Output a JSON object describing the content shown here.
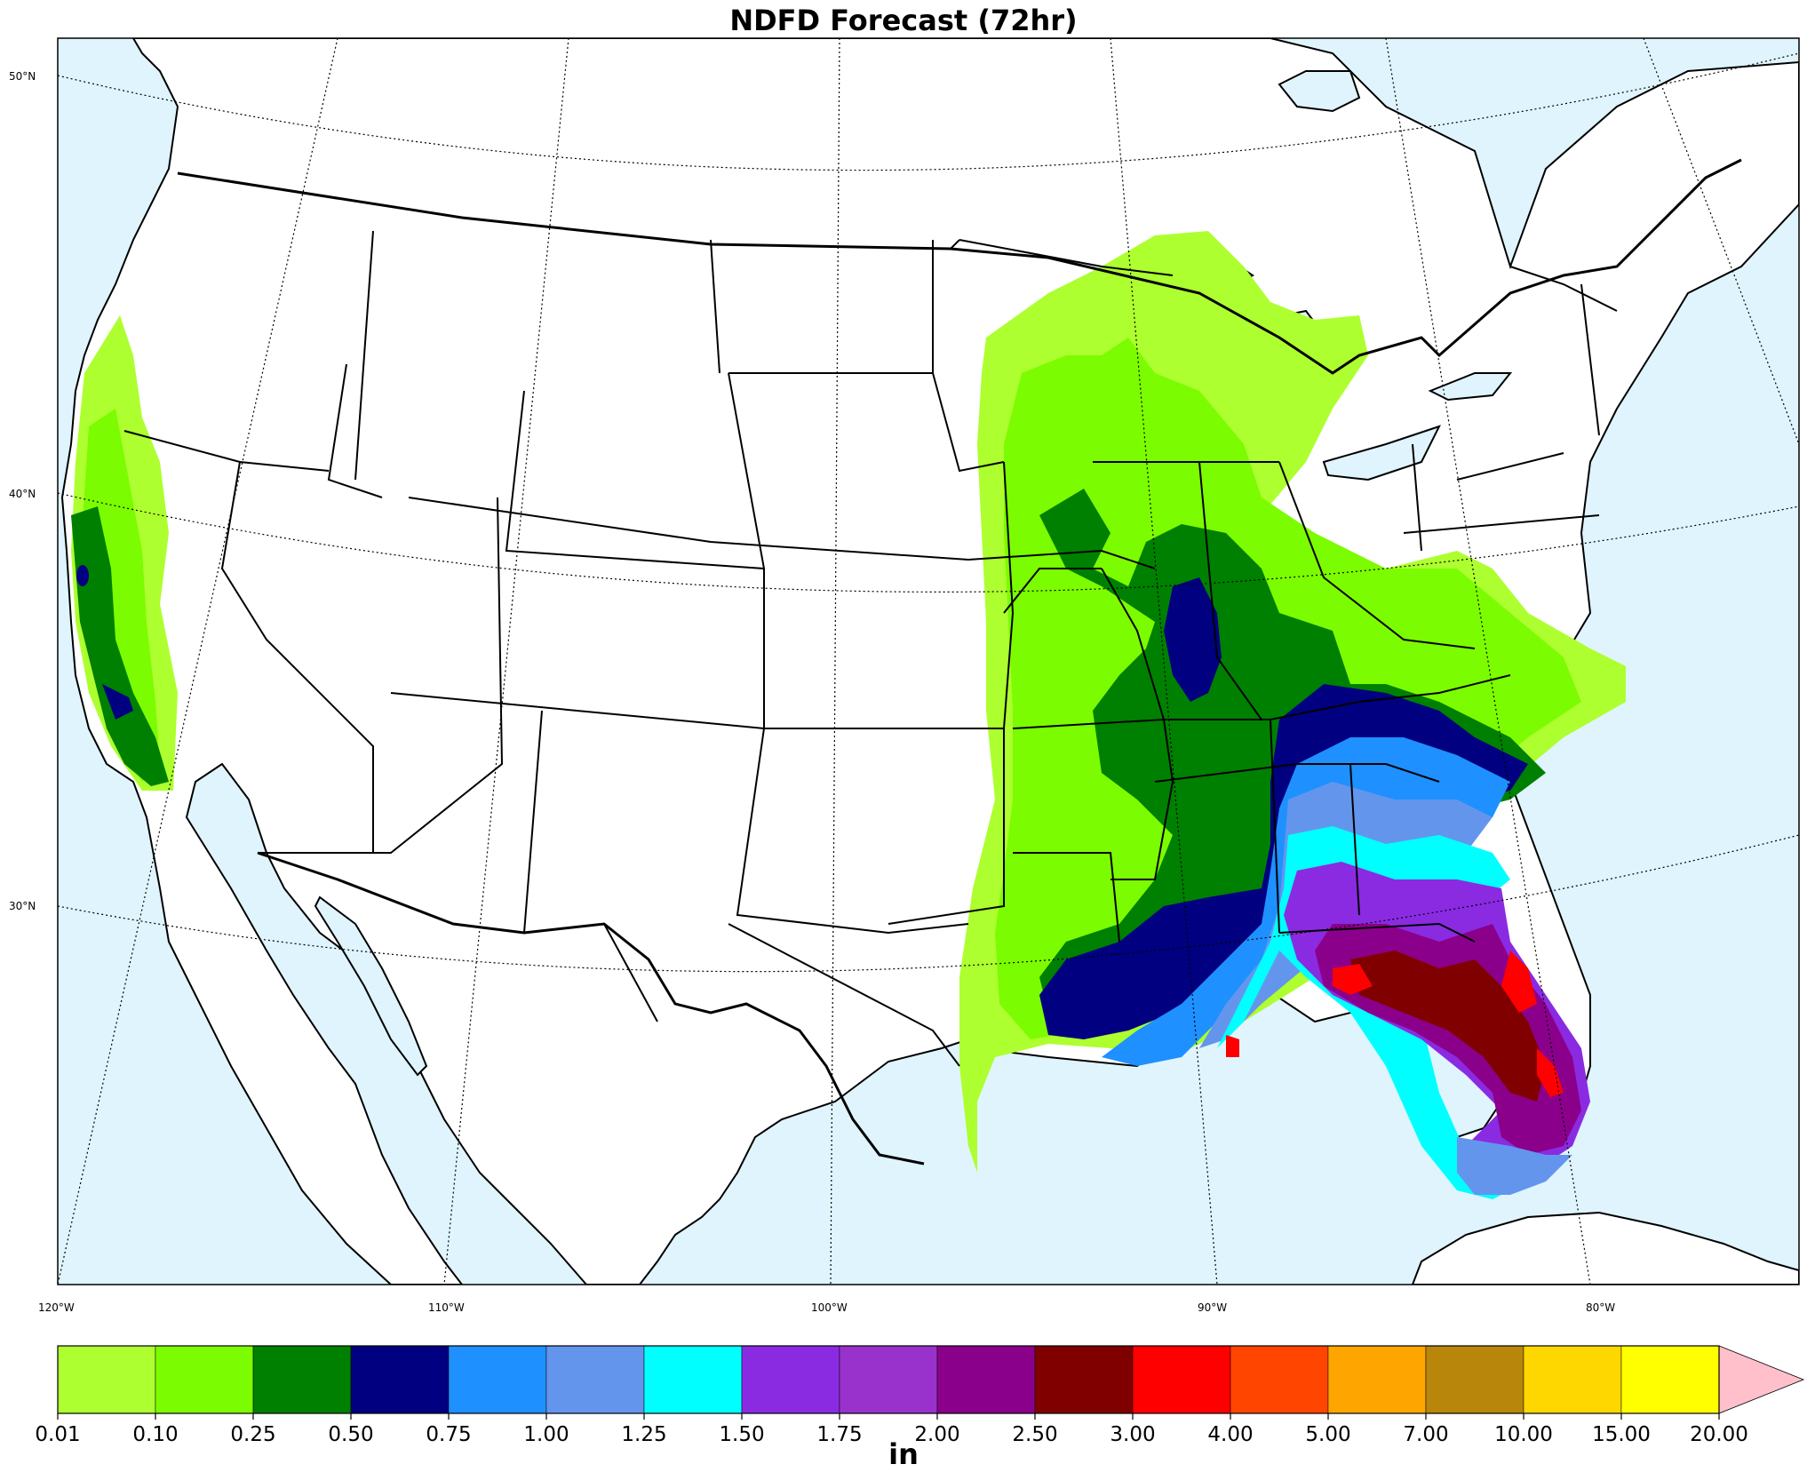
{
  "title": "NDFD Forecast (72hr)",
  "map": {
    "ocean_color": "#dff4fc",
    "land_color": "#ffffff",
    "lat_labels": [
      "50°N",
      "40°N",
      "30°N"
    ],
    "lon_labels": [
      "120°W",
      "110°W",
      "100°W",
      "90°W",
      "80°W"
    ]
  },
  "colorbar": {
    "units": "in",
    "ticks": [
      "0.01",
      "0.10",
      "0.25",
      "0.50",
      "0.75",
      "1.00",
      "1.25",
      "1.50",
      "1.75",
      "2.00",
      "2.50",
      "3.00",
      "4.00",
      "5.00",
      "7.00",
      "10.00",
      "15.00",
      "20.00"
    ],
    "colors": [
      "#adff2f",
      "#7cfc00",
      "#008000",
      "#000080",
      "#1e90ff",
      "#6495ed",
      "#00ffff",
      "#8a2be2",
      "#9932cc",
      "#8b008b",
      "#800000",
      "#ff0000",
      "#ff4500",
      "#ffa500",
      "#b8860b",
      "#ffd700",
      "#ffff00"
    ],
    "extend_color": "#ffc0cb"
  }
}
